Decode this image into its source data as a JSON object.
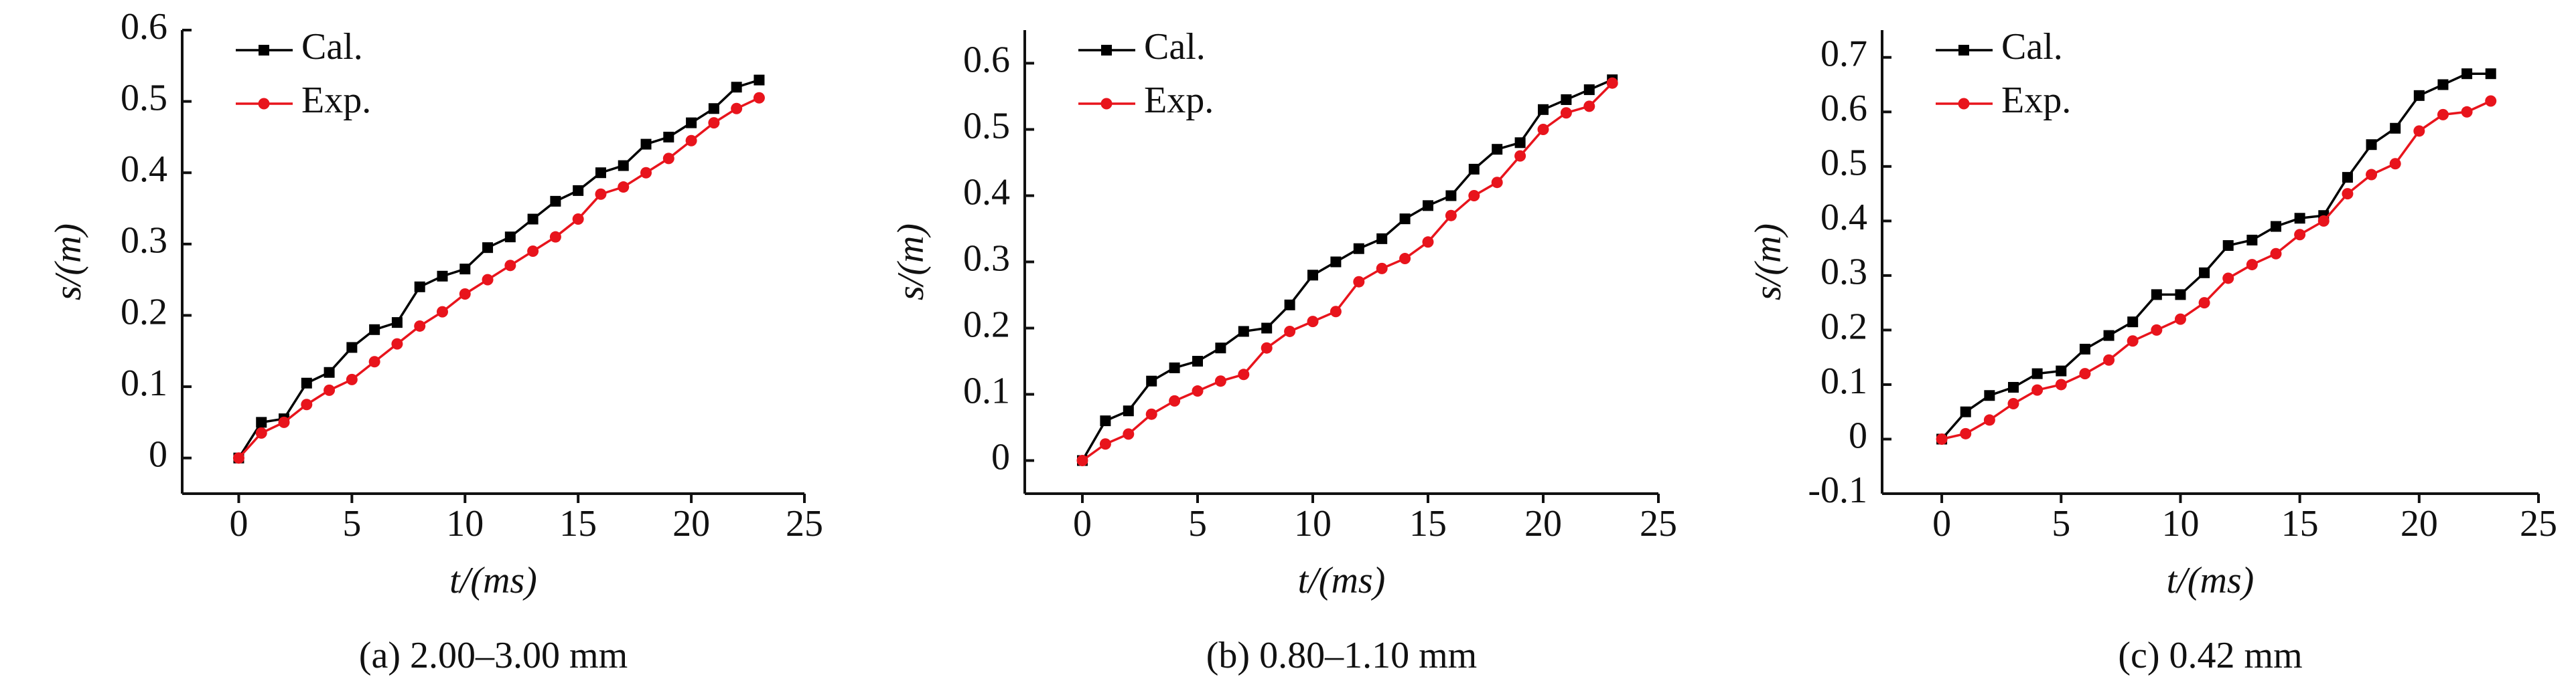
{
  "chart_data": [
    {
      "type": "line",
      "caption": "(a) 2.00–3.00 mm",
      "x_label": "t/(ms)",
      "y_label": "s/(m)",
      "x": [
        0,
        1,
        2,
        3,
        4,
        5,
        6,
        7,
        8,
        9,
        10,
        11,
        12,
        13,
        14,
        15,
        16,
        17,
        18,
        19,
        20,
        21,
        22,
        23
      ],
      "xlim": [
        -2.5,
        25
      ],
      "xticks": [
        0,
        5,
        10,
        15,
        20,
        25
      ],
      "ylim": [
        -0.05,
        0.6
      ],
      "yticks": [
        0,
        0.1,
        0.2,
        0.3,
        0.4,
        0.5,
        0.6
      ],
      "legend": "upper left",
      "series": [
        {
          "name": "Cal.",
          "color": "#000000",
          "marker": "square",
          "values": [
            0,
            0.05,
            0.055,
            0.105,
            0.12,
            0.155,
            0.18,
            0.19,
            0.24,
            0.255,
            0.265,
            0.295,
            0.31,
            0.335,
            0.36,
            0.375,
            0.4,
            0.41,
            0.44,
            0.45,
            0.47,
            0.49,
            0.52,
            0.53
          ]
        },
        {
          "name": "Exp.",
          "color": "#e8141c",
          "marker": "circle",
          "values": [
            0,
            0.035,
            0.05,
            0.075,
            0.095,
            0.11,
            0.135,
            0.16,
            0.185,
            0.205,
            0.23,
            0.25,
            0.27,
            0.29,
            0.31,
            0.335,
            0.37,
            0.38,
            0.4,
            0.42,
            0.445,
            0.47,
            0.49,
            0.505
          ]
        }
      ]
    },
    {
      "type": "line",
      "caption": "(b) 0.80–1.10 mm",
      "x_label": "t/(ms)",
      "y_label": "s/(m)",
      "x": [
        0,
        1,
        2,
        3,
        4,
        5,
        6,
        7,
        8,
        9,
        10,
        11,
        12,
        13,
        14,
        15,
        16,
        17,
        18,
        19,
        20,
        21,
        22,
        23
      ],
      "xlim": [
        -2.5,
        25
      ],
      "xticks": [
        0,
        5,
        10,
        15,
        20,
        25
      ],
      "ylim": [
        -0.05,
        0.65
      ],
      "yticks": [
        0,
        0.1,
        0.2,
        0.3,
        0.4,
        0.5,
        0.6
      ],
      "legend": "upper left",
      "series": [
        {
          "name": "Cal.",
          "color": "#000000",
          "marker": "square",
          "values": [
            0,
            0.06,
            0.075,
            0.12,
            0.14,
            0.15,
            0.17,
            0.195,
            0.2,
            0.235,
            0.28,
            0.3,
            0.32,
            0.335,
            0.365,
            0.385,
            0.4,
            0.44,
            0.47,
            0.48,
            0.53,
            0.545,
            0.56,
            0.575
          ]
        },
        {
          "name": "Exp.",
          "color": "#e8141c",
          "marker": "circle",
          "values": [
            0,
            0.025,
            0.04,
            0.07,
            0.09,
            0.105,
            0.12,
            0.13,
            0.17,
            0.195,
            0.21,
            0.225,
            0.27,
            0.29,
            0.305,
            0.33,
            0.37,
            0.4,
            0.42,
            0.46,
            0.5,
            0.525,
            0.535,
            0.57
          ]
        }
      ]
    },
    {
      "type": "line",
      "caption": "(c) 0.42 mm",
      "x_label": "t/(ms)",
      "y_label": "s/(m)",
      "x": [
        0,
        1,
        2,
        3,
        4,
        5,
        6,
        7,
        8,
        9,
        10,
        11,
        12,
        13,
        14,
        15,
        16,
        17,
        18,
        19,
        20,
        21,
        22,
        23
      ],
      "xlim": [
        -2.5,
        25
      ],
      "xticks": [
        0,
        5,
        10,
        15,
        20,
        25
      ],
      "ylim": [
        -0.1,
        0.75
      ],
      "yticks": [
        -0.1,
        0,
        0.1,
        0.2,
        0.3,
        0.4,
        0.5,
        0.6,
        0.7
      ],
      "legend": "upper left",
      "series": [
        {
          "name": "Cal.",
          "color": "#000000",
          "marker": "square",
          "values": [
            0,
            0.05,
            0.08,
            0.095,
            0.12,
            0.125,
            0.165,
            0.19,
            0.215,
            0.265,
            0.265,
            0.305,
            0.355,
            0.365,
            0.39,
            0.405,
            0.41,
            0.48,
            0.54,
            0.57,
            0.63,
            0.65,
            0.67,
            0.67
          ]
        },
        {
          "name": "Exp.",
          "color": "#e8141c",
          "marker": "circle",
          "values": [
            0,
            0.01,
            0.035,
            0.065,
            0.09,
            0.1,
            0.12,
            0.145,
            0.18,
            0.2,
            0.22,
            0.25,
            0.295,
            0.32,
            0.34,
            0.375,
            0.4,
            0.45,
            0.485,
            0.505,
            0.565,
            0.595,
            0.6,
            0.62
          ]
        }
      ]
    }
  ]
}
